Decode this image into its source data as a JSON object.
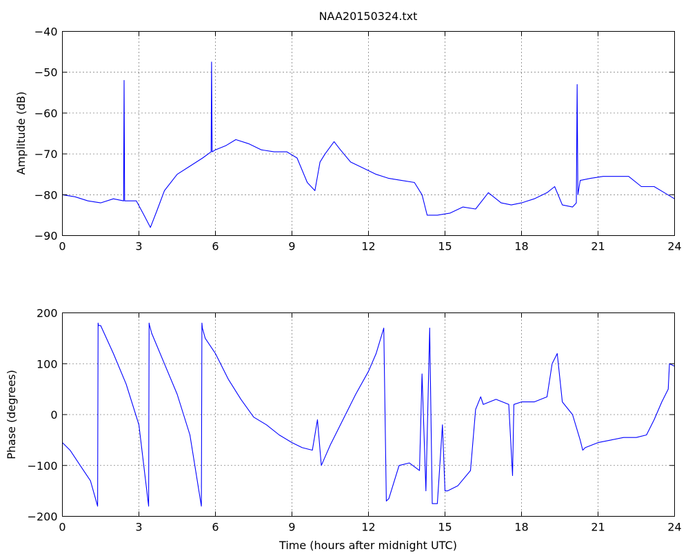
{
  "colors": {
    "series": "#0000ff",
    "axes": "#000000",
    "background": "#ffffff"
  },
  "chart_data": [
    {
      "type": "line",
      "title": "NAA20150324.txt",
      "xlabel": "",
      "ylabel": "Amplitude (dB)",
      "xlim": [
        0,
        24
      ],
      "ylim": [
        -90,
        -40
      ],
      "xticks": [
        0,
        3,
        6,
        9,
        12,
        15,
        18,
        21,
        24
      ],
      "yticks": [
        -90,
        -80,
        -70,
        -60,
        -50,
        -40
      ],
      "grid": true,
      "series": [
        {
          "color": "#0000ff",
          "x": [
            0,
            0.5,
            1.0,
            1.5,
            2.0,
            2.4,
            2.42,
            2.44,
            2.5,
            2.9,
            3.2,
            3.45,
            3.7,
            4.0,
            4.5,
            5.0,
            5.5,
            5.83,
            5.85,
            5.87,
            6.0,
            6.4,
            6.8,
            7.3,
            7.8,
            8.3,
            8.8,
            9.2,
            9.6,
            9.9,
            10.1,
            10.3,
            10.65,
            10.9,
            11.3,
            11.8,
            12.3,
            12.8,
            13.3,
            13.8,
            14.1,
            14.3,
            14.7,
            15.2,
            15.7,
            16.2,
            16.7,
            17.2,
            17.6,
            18.0,
            18.5,
            19.0,
            19.3,
            19.6,
            20.0,
            20.15,
            20.18,
            20.21,
            20.3,
            20.7,
            21.2,
            21.7,
            22.2,
            22.7,
            23.2,
            23.6,
            24.0
          ],
          "y": [
            -80,
            -80.5,
            -81.5,
            -82,
            -81,
            -81.5,
            -52,
            -81.5,
            -81.5,
            -81.5,
            -85,
            -88,
            -84,
            -79,
            -75,
            -73,
            -71,
            -69.5,
            -47.5,
            -69.5,
            -69,
            -68,
            -66.5,
            -67.5,
            -69,
            -69.5,
            -69.5,
            -71,
            -77,
            -79,
            -72,
            -70,
            -67,
            -69,
            -72,
            -73.5,
            -75,
            -76,
            -76.5,
            -77,
            -80,
            -85,
            -85,
            -84.5,
            -83,
            -83.5,
            -79.5,
            -82,
            -82.5,
            -82,
            -81,
            -79.5,
            -78,
            -82.5,
            -83,
            -82,
            -53,
            -80,
            -76.5,
            -76,
            -75.5,
            -75.5,
            -75.5,
            -78,
            -78,
            -79.5,
            -81
          ]
        }
      ]
    },
    {
      "type": "line",
      "title": "",
      "xlabel": "Time (hours after midnight UTC)",
      "ylabel": "Phase (degrees)",
      "xlim": [
        0,
        24
      ],
      "ylim": [
        -200,
        200
      ],
      "xticks": [
        0,
        3,
        6,
        9,
        12,
        15,
        18,
        21,
        24
      ],
      "yticks": [
        -200,
        -100,
        0,
        100,
        200
      ],
      "grid": true,
      "series": [
        {
          "color": "#0000ff",
          "x": [
            0,
            0.3,
            0.7,
            1.1,
            1.38,
            1.4,
            1.42,
            1.5,
            2.0,
            2.5,
            3.0,
            3.38,
            3.4,
            3.42,
            3.5,
            4.0,
            4.5,
            5.0,
            5.45,
            5.47,
            5.49,
            5.6,
            6.0,
            6.5,
            7.0,
            7.5,
            8.0,
            8.5,
            9.0,
            9.4,
            9.8,
            10.0,
            10.15,
            10.5,
            11.0,
            11.5,
            12.0,
            12.3,
            12.6,
            12.7,
            12.8,
            13.2,
            13.6,
            14.0,
            14.1,
            14.25,
            14.4,
            14.5,
            14.7,
            14.9,
            15.0,
            15.1,
            15.5,
            16.0,
            16.2,
            16.4,
            16.5,
            17.0,
            17.5,
            17.65,
            17.7,
            18.0,
            18.5,
            19.0,
            19.2,
            19.4,
            19.6,
            20.0,
            20.3,
            20.4,
            20.5,
            21.0,
            21.5,
            22.0,
            22.5,
            22.9,
            23.2,
            23.5,
            23.75,
            23.8,
            24.0
          ],
          "y": [
            -55,
            -70,
            -100,
            -130,
            -180,
            180,
            175,
            175,
            120,
            60,
            -20,
            -180,
            180,
            175,
            160,
            100,
            40,
            -40,
            -180,
            180,
            170,
            150,
            120,
            70,
            30,
            -5,
            -20,
            -40,
            -55,
            -65,
            -70,
            -10,
            -100,
            -60,
            -10,
            40,
            85,
            120,
            170,
            -170,
            -165,
            -100,
            -95,
            -110,
            80,
            -150,
            170,
            -175,
            -175,
            -20,
            -150,
            -150,
            -140,
            -110,
            10,
            35,
            20,
            30,
            20,
            -120,
            20,
            25,
            25,
            35,
            100,
            120,
            25,
            0,
            -50,
            -70,
            -65,
            -55,
            -50,
            -45,
            -45,
            -40,
            -10,
            25,
            50,
            100,
            95
          ]
        }
      ]
    }
  ]
}
